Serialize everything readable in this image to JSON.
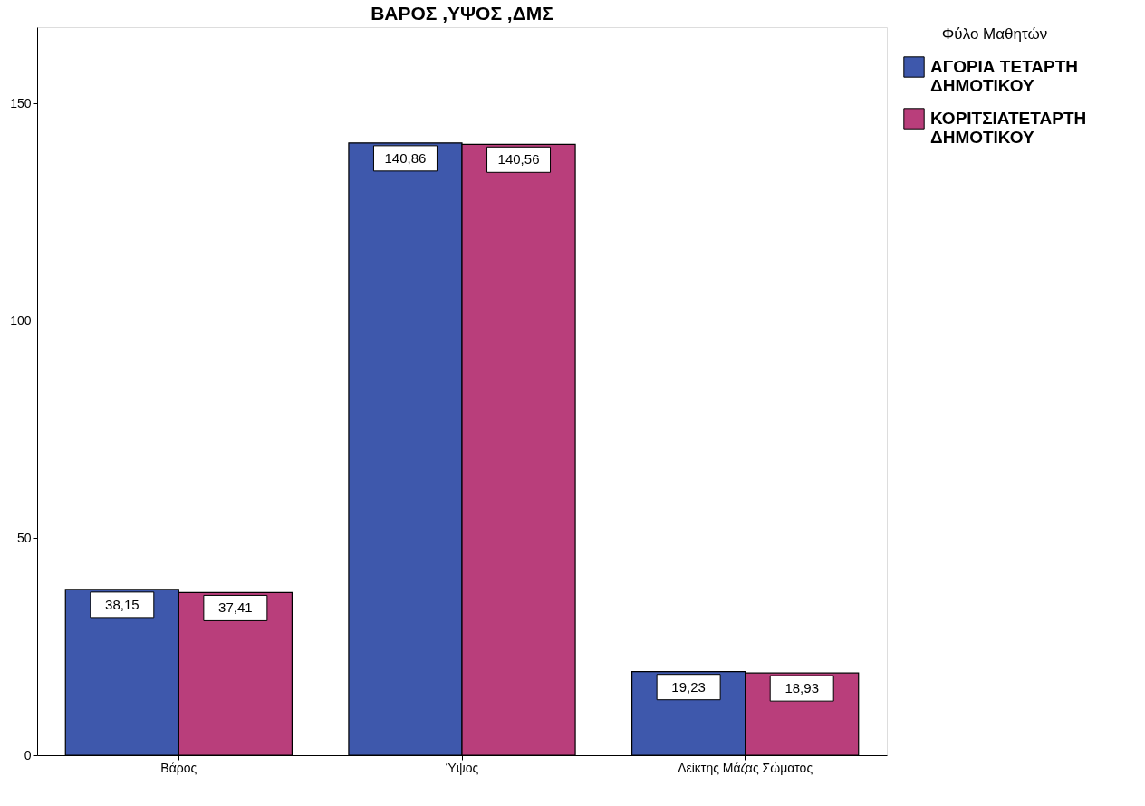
{
  "chart_data": {
    "type": "bar",
    "title": "ΒΑΡΟΣ ,ΥΨΟΣ ,ΔΜΣ",
    "legend_title": "Φύλο Μαθητών",
    "categories": [
      "Βάρος",
      "Ύψος",
      "Δείκτης Μάζας Σώματος"
    ],
    "series": [
      {
        "name": "ΑΓΟΡΙΑ ΤΕΤΑΡΤΗ ΔΗΜΟΤΙΚΟΥ",
        "color": "#3e58ac",
        "values": [
          38.15,
          140.86,
          19.23
        ],
        "value_labels": [
          "38,15",
          "140,86",
          "19,23"
        ]
      },
      {
        "name": "ΚΟΡΙΤΣΙΑΤΕΤΑΡΤΗ ΔΗΜΟΤΙΚΟΥ",
        "color": "#b93e7b",
        "values": [
          37.41,
          140.56,
          18.93
        ],
        "value_labels": [
          "37,41",
          "140,56",
          "18,93"
        ]
      }
    ],
    "ylim": [
      0,
      167.5
    ],
    "yticks": [
      0,
      50,
      100,
      150
    ],
    "grid": false,
    "legend": "top right"
  }
}
